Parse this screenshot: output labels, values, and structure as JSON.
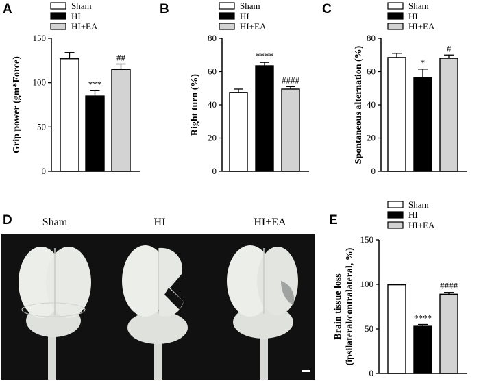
{
  "colors": {
    "Sham": "#ffffff",
    "HI": "#000000",
    "HI+EA": "#d3d3d3",
    "stroke": "#000000",
    "photo_bg": "#111111",
    "brain": "#e9ebe8"
  },
  "legend_items": [
    "Sham",
    "HI",
    "HI+EA"
  ],
  "panel_d": {
    "label": "D",
    "photo_labels": [
      "Sham",
      "HI",
      "HI+EA"
    ]
  },
  "chart_data": [
    {
      "panel": "A",
      "type": "bar",
      "categories": [
        "Sham",
        "HI",
        "HI+EA"
      ],
      "values": [
        127,
        85,
        115
      ],
      "errors": [
        7,
        6,
        6
      ],
      "annotations": [
        "",
        "***",
        "##"
      ],
      "ylabel": "Grip power (gm*Force)",
      "ylim": [
        0,
        150
      ],
      "yticks": [
        "0",
        "50",
        "100",
        "150"
      ],
      "legend": [
        "Sham",
        "HI",
        "HI+EA"
      ]
    },
    {
      "panel": "B",
      "type": "bar",
      "categories": [
        "Sham",
        "HI",
        "HI+EA"
      ],
      "values": [
        47.5,
        63.5,
        49.5
      ],
      "errors": [
        2,
        2,
        1.5
      ],
      "annotations": [
        "",
        "****",
        "####"
      ],
      "ylabel": "Right turn (%)",
      "ylim": [
        0,
        80
      ],
      "yticks": [
        "0",
        "20",
        "40",
        "60",
        "80"
      ],
      "legend": [
        "Sham",
        "HI",
        "HI+EA"
      ]
    },
    {
      "panel": "C",
      "type": "bar",
      "categories": [
        "Sham",
        "HI",
        "HI+EA"
      ],
      "values": [
        68.5,
        56.5,
        68
      ],
      "errors": [
        2.5,
        5,
        2
      ],
      "annotations": [
        "",
        "*",
        "#"
      ],
      "ylabel": "Spontaneous alternation (%)",
      "ylim": [
        0,
        80
      ],
      "yticks": [
        "0",
        "20",
        "40",
        "60",
        "80"
      ],
      "legend": [
        "Sham",
        "HI",
        "HI+EA"
      ]
    },
    {
      "panel": "E",
      "type": "bar",
      "categories": [
        "Sham",
        "HI",
        "HI+EA"
      ],
      "values": [
        99.5,
        53,
        89
      ],
      "errors": [
        0.5,
        2,
        2
      ],
      "annotations": [
        "",
        "****",
        "####"
      ],
      "ylabel_lines": [
        "Brain tissue loss",
        "(ipsilateral/contralateral, %)"
      ],
      "ylim": [
        0,
        150
      ],
      "yticks": [
        "0",
        "50",
        "100",
        "150"
      ],
      "legend": [
        "Sham",
        "HI",
        "HI+EA"
      ]
    }
  ]
}
